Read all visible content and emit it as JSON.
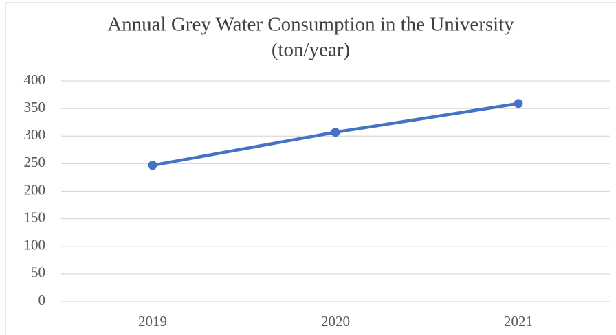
{
  "chart_data": {
    "type": "line",
    "title": [
      "Annual Grey Water Consumption in the University",
      "(ton/year)"
    ],
    "categories": [
      "2019",
      "2020",
      "2021"
    ],
    "series": [
      {
        "name": "Grey Water Consumption",
        "color": "#4472c4",
        "values": [
          247,
          307,
          359
        ]
      }
    ],
    "ylim": [
      0,
      400
    ],
    "yticks": [
      0,
      50,
      100,
      150,
      200,
      250,
      300,
      350,
      400
    ],
    "grid": true
  }
}
